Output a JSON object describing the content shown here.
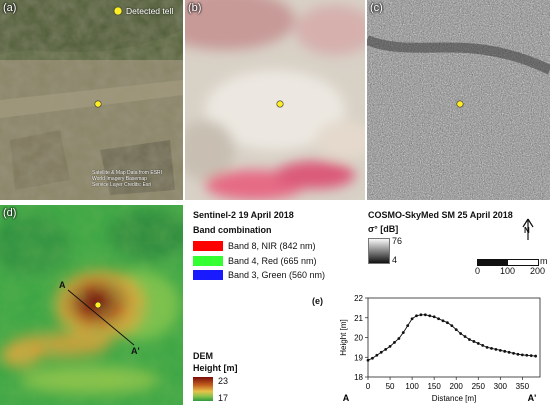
{
  "panels": {
    "a": {
      "label": "(a)",
      "legend": "Detected tell",
      "watermark": [
        "Satellite & Map Data from ESRI",
        "World Imagery Basemap",
        "Service Layer Credits: Esri"
      ]
    },
    "b": {
      "label": "(b)"
    },
    "c": {
      "label": "(c)"
    },
    "d": {
      "label": "(d)",
      "profile_start": "A",
      "profile_end": "A'"
    },
    "e": {
      "label": "(e)"
    }
  },
  "sentinel": {
    "title": "Sentinel-2 19 April 2018",
    "band_combination": "Band combination",
    "bands": [
      {
        "label": "Band 8, NIR (842 nm)",
        "color": "#ff0000"
      },
      {
        "label": "Band 4, Red (665 nm)",
        "color": "#33ff33"
      },
      {
        "label": "Band 3, Green (560 nm)",
        "color": "#1a1aff"
      }
    ]
  },
  "cosmo": {
    "title": "COSMO-SkyMed SM 25 April 2018",
    "sigma_label": "σ° [dB]",
    "scale_max": "76",
    "scale_min": "4"
  },
  "scalebar": {
    "ticks": [
      "0",
      "100",
      "200"
    ],
    "unit": "m"
  },
  "north": {
    "label": "N"
  },
  "dem": {
    "title": "DEM",
    "subtitle": "Height [m]",
    "max": "23",
    "min": "17"
  },
  "colors": {
    "tell_marker": "#ffee22",
    "dem_high": "#7a0a0a",
    "dem_low": "#2e9a3e"
  },
  "chart_data": {
    "type": "line",
    "xlabel": "Distance [m]",
    "ylabel": "Height [m]",
    "xlim": [
      0,
      390
    ],
    "ylim": [
      18,
      22
    ],
    "xticks": [
      "0",
      "50",
      "100",
      "150",
      "200",
      "250",
      "300",
      "350"
    ],
    "yticks": [
      "18",
      "19",
      "20",
      "21",
      "22"
    ],
    "start_label": "A",
    "end_label": "A'",
    "x": [
      0,
      10,
      20,
      30,
      40,
      50,
      60,
      70,
      80,
      90,
      100,
      110,
      120,
      130,
      140,
      150,
      160,
      170,
      180,
      190,
      200,
      210,
      220,
      230,
      240,
      250,
      260,
      270,
      280,
      290,
      300,
      310,
      320,
      330,
      340,
      350,
      360,
      370,
      380
    ],
    "y": [
      18.85,
      18.95,
      19.1,
      19.25,
      19.4,
      19.55,
      19.75,
      19.95,
      20.25,
      20.6,
      20.95,
      21.1,
      21.15,
      21.15,
      21.1,
      21.05,
      20.95,
      20.85,
      20.75,
      20.6,
      20.4,
      20.2,
      20.05,
      19.9,
      19.8,
      19.7,
      19.6,
      19.5,
      19.45,
      19.4,
      19.35,
      19.3,
      19.25,
      19.2,
      19.15,
      19.12,
      19.1,
      19.08,
      19.06
    ]
  }
}
